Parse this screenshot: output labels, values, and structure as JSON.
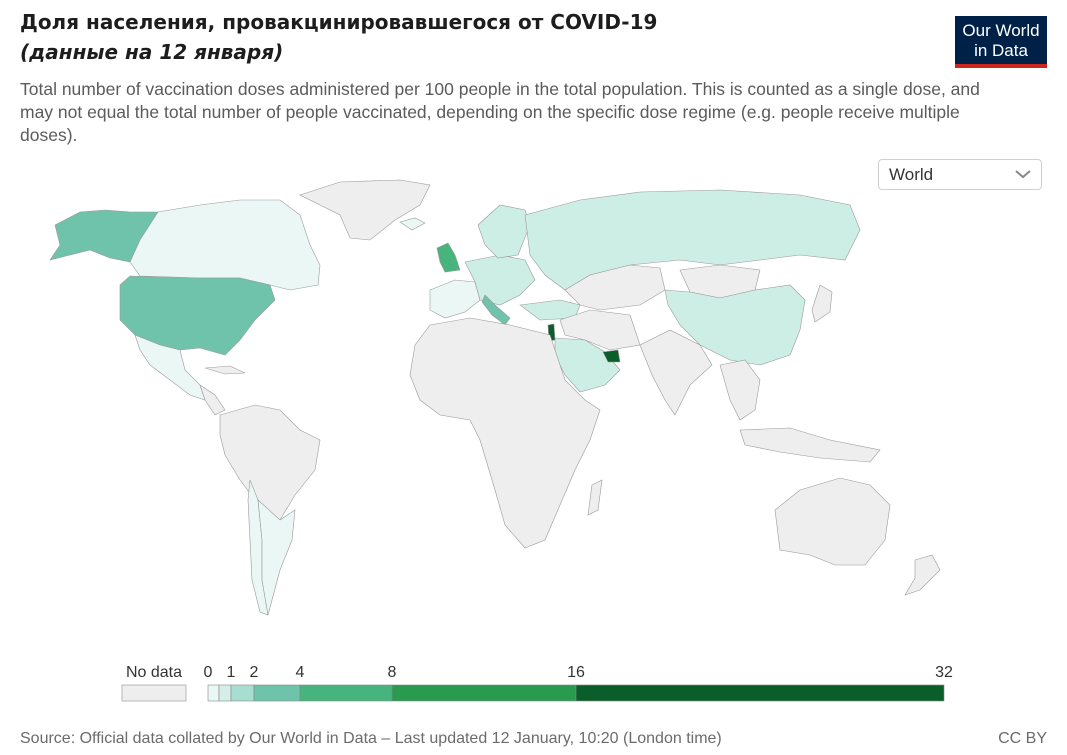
{
  "header": {
    "title": "Доля населения, провакцинировавшегося от COVID-19",
    "subtitle": "(данные на 12 января)",
    "description": "Total number of vaccination doses administered per 100 people in the total population. This is counted as a single dose, and may not equal the total number of people vaccinated, depending on the specific dose regime (e.g. people receive multiple doses)."
  },
  "logo": {
    "line1": "Our World",
    "line2": "in Data",
    "bg_color": "#002147",
    "accent_color": "#ce261e"
  },
  "region_select": {
    "value": "World"
  },
  "legend": {
    "no_data_label": "No data",
    "no_data_color": "#eeeeee",
    "bins": [
      {
        "from": 0,
        "to": 0.5,
        "color": "#eaf7f5"
      },
      {
        "from": 0.5,
        "to": 1,
        "color": "#d4efe9"
      },
      {
        "from": 1,
        "to": 2,
        "color": "#a8ddd2"
      },
      {
        "from": 2,
        "to": 4,
        "color": "#6fc3ab"
      },
      {
        "from": 4,
        "to": 8,
        "color": "#46b47c"
      },
      {
        "from": 8,
        "to": 16,
        "color": "#2a9a4e"
      },
      {
        "from": 16,
        "to": 32,
        "color": "#0a5e2a"
      }
    ],
    "tick_labels": [
      "0",
      "1",
      "2",
      "4",
      "8",
      "16",
      "32"
    ]
  },
  "map_colors": {
    "no_data": "#eeeeee",
    "very_low": "#eaf7f5",
    "low": "#cdeee5",
    "mid": "#6fc3ab",
    "high": "#46b47c",
    "very_high": "#0a5e2a",
    "ocean": "#ffffff"
  },
  "footer": {
    "source": "Source: Official data collated by Our World in Data – Last updated 12 January, 10:20 (London time)",
    "license": "CC BY"
  }
}
